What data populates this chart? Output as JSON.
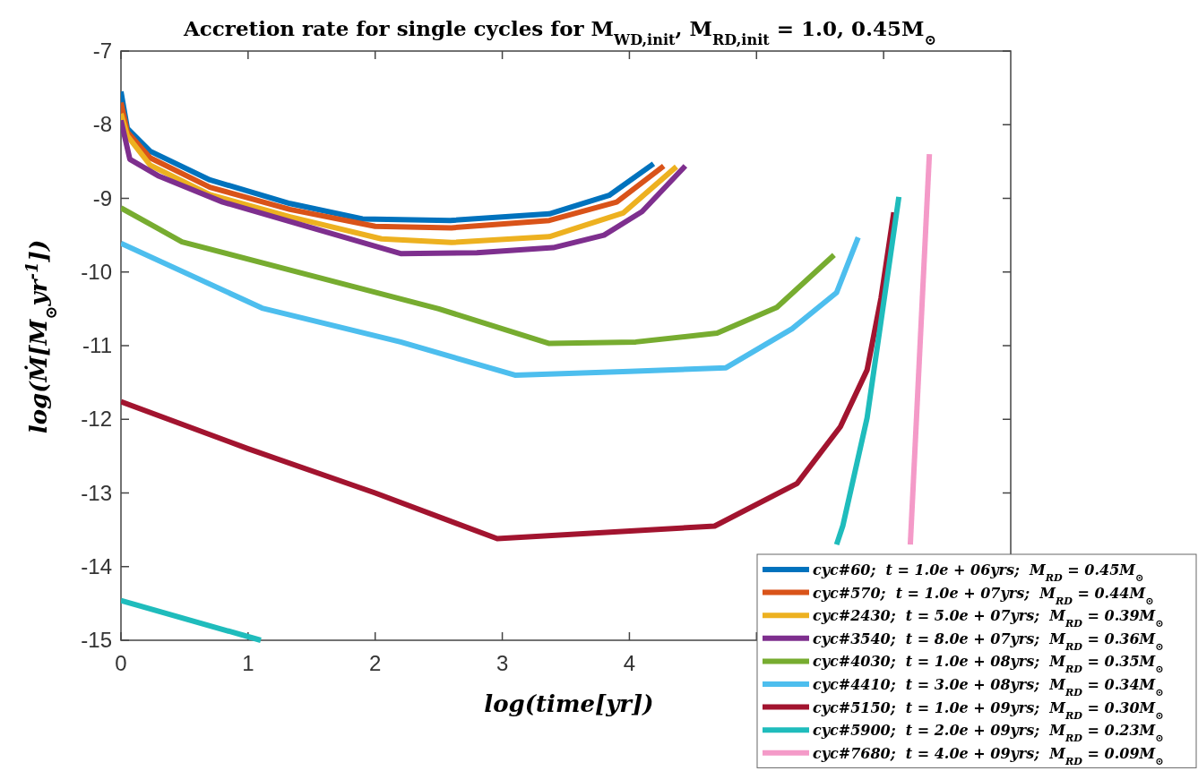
{
  "chart_data": {
    "type": "line",
    "title": "Accretion rate for single cycles for M$_{WD,init}$, M$_{RD,init}$ = 1.0, 0.45M$_{⊙}$",
    "xlabel": "log(time[yr])",
    "ylabel": "log(Ṁ[M$_{⊙}$yr$^{-1}$])",
    "xlim": [
      0,
      7
    ],
    "ylim": [
      -15,
      -7
    ],
    "xticks": [
      0,
      1,
      2,
      3,
      4,
      {
        "value": 5,
        "label": null
      },
      {
        "value": 6,
        "label": null
      }
    ],
    "yticks": [
      -15,
      -14,
      -13,
      -12,
      -11,
      -10,
      -9,
      -8,
      -7
    ],
    "grid": false,
    "legend": "bottom right",
    "line_style": "solid",
    "marker": "none",
    "series": [
      {
        "name": "cyc#60;  t = 1.0e + 06yrs;  M$_{RD}$ = 0.45M$_{⊙}$",
        "color": "#0072bd",
        "x": [
          0,
          0.05,
          0.23,
          0.7,
          1.33,
          1.9,
          2.59,
          3.37,
          3.84,
          4.19
        ],
        "values": [
          -7.55,
          -8.05,
          -8.36,
          -8.75,
          -9.07,
          -9.28,
          -9.3,
          -9.21,
          -8.96,
          -8.53
        ]
      },
      {
        "name": "cyc#570;  t = 1.0e + 07yrs;  M$_{RD}$ = 0.44M$_{⊙}$",
        "color": "#d95319",
        "x": [
          0,
          0.05,
          0.23,
          0.7,
          1.33,
          2.0,
          2.6,
          3.37,
          3.9,
          4.27
        ],
        "values": [
          -7.7,
          -8.1,
          -8.45,
          -8.85,
          -9.15,
          -9.38,
          -9.4,
          -9.3,
          -9.05,
          -8.56
        ]
      },
      {
        "name": "cyc#2430;  t = 5.0e + 07yrs;  M$_{RD}$ = 0.39M$_{⊙}$",
        "color": "#edb120",
        "x": [
          0,
          0.05,
          0.23,
          0.7,
          1.33,
          2.05,
          2.6,
          3.37,
          3.95,
          4.37
        ],
        "values": [
          -7.85,
          -8.15,
          -8.55,
          -8.95,
          -9.25,
          -9.55,
          -9.6,
          -9.52,
          -9.2,
          -8.57
        ]
      },
      {
        "name": "cyc#3540;  t = 8.0e + 07yrs;  M$_{RD}$ = 0.36M$_{⊙}$",
        "color": "#7e2f8e",
        "x": [
          0,
          0.07,
          0.3,
          0.8,
          1.5,
          2.2,
          2.8,
          3.4,
          3.8,
          4.1,
          4.44
        ],
        "values": [
          -7.94,
          -8.47,
          -8.7,
          -9.05,
          -9.4,
          -9.75,
          -9.74,
          -9.67,
          -9.5,
          -9.18,
          -8.56
        ]
      },
      {
        "name": "cyc#4030;  t = 1.0e + 08yrs;  M$_{RD}$ = 0.35M$_{⊙}$",
        "color": "#77ac30",
        "x": [
          0,
          0.48,
          1.5,
          2.5,
          3.37,
          4.05,
          4.69,
          5.16,
          5.61
        ],
        "values": [
          -9.13,
          -9.59,
          -10.05,
          -10.5,
          -10.97,
          -10.95,
          -10.83,
          -10.48,
          -9.77
        ]
      },
      {
        "name": "cyc#4410;  t = 3.0e + 08yrs;  M$_{RD}$ = 0.34M$_{⊙}$",
        "color": "#4dbeee",
        "x": [
          0,
          1.11,
          2.2,
          3.1,
          4.0,
          4.76,
          5.28,
          5.63,
          5.8
        ],
        "values": [
          -9.61,
          -10.49,
          -10.95,
          -11.4,
          -11.35,
          -11.3,
          -10.77,
          -10.28,
          -9.53
        ]
      },
      {
        "name": "cyc#5150;  t = 1.0e + 09yrs;  M$_{RD}$ = 0.30M$_{⊙}$",
        "color": "#a2142f",
        "x": [
          0,
          1,
          2,
          2.96,
          4.67,
          5.32,
          5.66,
          5.87,
          5.98,
          6.08
        ],
        "values": [
          -11.76,
          -12.4,
          -13.0,
          -13.62,
          -13.45,
          -12.87,
          -12.1,
          -11.33,
          -10.35,
          -9.19
        ]
      },
      {
        "name": "cyc#5900;  t = 2.0e + 09yrs;  M$_{RD}$ = 0.23M$_{⊙}$",
        "color": "#1fbcbc",
        "x": [
          5.63,
          5.68,
          5.87,
          6.12
        ],
        "values": [
          -13.7,
          -13.44,
          -11.98,
          -8.98
        ]
      },
      {
        "color": "#1fbcbc",
        "x": [
          0,
          1.1
        ],
        "values": [
          -14.46,
          -15.0
        ]
      },
      {
        "name": "cyc#7680;  t = 4.0e + 09yrs;  M$_{RD}$ = 0.09M$_{⊙}$",
        "color": "#f49ac8",
        "x": [
          6.21,
          6.36
        ],
        "values": [
          -13.7,
          -8.4
        ]
      }
    ]
  }
}
